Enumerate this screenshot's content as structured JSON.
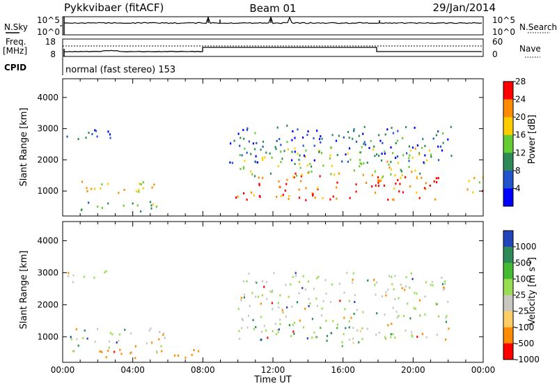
{
  "header": {
    "station": "Pykkvibaer (fitACF)",
    "beam": "Beam 01",
    "date": "29/Jan/2014"
  },
  "panels": {
    "nsky": {
      "label": "N.Sky",
      "left_ticks": [
        "10^5",
        "10^0"
      ],
      "right_ticks": [
        "10^5",
        "10^0"
      ],
      "right_label": "N.Search"
    },
    "freq": {
      "label_line1": "Freq.",
      "label_line2": "[MHz]",
      "left_ticks": [
        "18",
        "8"
      ],
      "right_ticks": [
        "60",
        "0"
      ],
      "right_label": "Nave"
    },
    "cpid": {
      "label": "CPID",
      "text": "normal (fast stereo) 153"
    }
  },
  "chart_data": [
    {
      "type": "heatmap",
      "title": "",
      "xlabel": "Time UT",
      "ylabel": "Slant Range [km]",
      "x_ticks": [
        "00:00",
        "04:00",
        "08:00",
        "12:00",
        "16:00",
        "20:00",
        "00:00"
      ],
      "y_ticks": [
        "1000",
        "2000",
        "3000",
        "4000"
      ],
      "xlim": [
        0,
        24
      ],
      "ylim": [
        200,
        4600
      ],
      "colorbar_label": "Power [dB]",
      "colorbar_ticks": [
        "4",
        "8",
        "12",
        "16",
        "20",
        "24",
        "28"
      ],
      "colorbar_colors": [
        "#0000ff",
        "#2255cc",
        "#2e8b57",
        "#66cc33",
        "#ffcc00",
        "#ff8c00",
        "#ff0000"
      ],
      "scatter_bands": [
        {
          "x": [
            0.2,
            5.2
          ],
          "y": [
            900,
            1350
          ],
          "value": 20
        },
        {
          "x": [
            0.2,
            2.8
          ],
          "y": [
            2600,
            3100
          ],
          "value": 8
        },
        {
          "x": [
            1.0,
            6.0
          ],
          "y": [
            300,
            650
          ],
          "value": 12
        },
        {
          "x": [
            9.8,
            21.5
          ],
          "y": [
            700,
            1600
          ],
          "value": 26
        },
        {
          "x": [
            10.0,
            21.0
          ],
          "y": [
            1400,
            2400
          ],
          "value": 16
        },
        {
          "x": [
            9.5,
            22.5
          ],
          "y": [
            1900,
            3100
          ],
          "value": 8
        },
        {
          "x": [
            22.8,
            24.0
          ],
          "y": [
            800,
            1500
          ],
          "value": 22
        }
      ]
    },
    {
      "type": "heatmap",
      "title": "",
      "xlabel": "Time UT",
      "ylabel": "Slant Range [km]",
      "x_ticks": [
        "00:00",
        "04:00",
        "08:00",
        "12:00",
        "16:00",
        "20:00",
        "00:00"
      ],
      "y_ticks": [
        "1000",
        "2000",
        "3000",
        "4000"
      ],
      "xlim": [
        0,
        24
      ],
      "ylim": [
        200,
        4600
      ],
      "colorbar_label": "Velocity [m s^-1]",
      "colorbar_ticks": [
        "1000",
        "500",
        "100",
        "25",
        "-25",
        "-100",
        "-500",
        "-1000"
      ],
      "colorbar_colors": [
        "#2244bb",
        "#2e8b57",
        "#44bb33",
        "#99dd55",
        "#c8c8c0",
        "#ffcc66",
        "#ff8c00",
        "#ff0000"
      ],
      "scatter_bands": [
        {
          "x": [
            0.3,
            6.0
          ],
          "y": [
            500,
            1300
          ],
          "value": 0
        },
        {
          "x": [
            0.2,
            2.6
          ],
          "y": [
            2700,
            3100
          ],
          "value": 0
        },
        {
          "x": [
            10.0,
            22.0
          ],
          "y": [
            900,
            3000
          ],
          "value": 0
        },
        {
          "x": [
            14.5,
            17.0
          ],
          "y": [
            700,
            1300
          ],
          "value": 100
        },
        {
          "x": [
            2.0,
            8.0
          ],
          "y": [
            300,
            600
          ],
          "value": -300
        }
      ]
    }
  ]
}
